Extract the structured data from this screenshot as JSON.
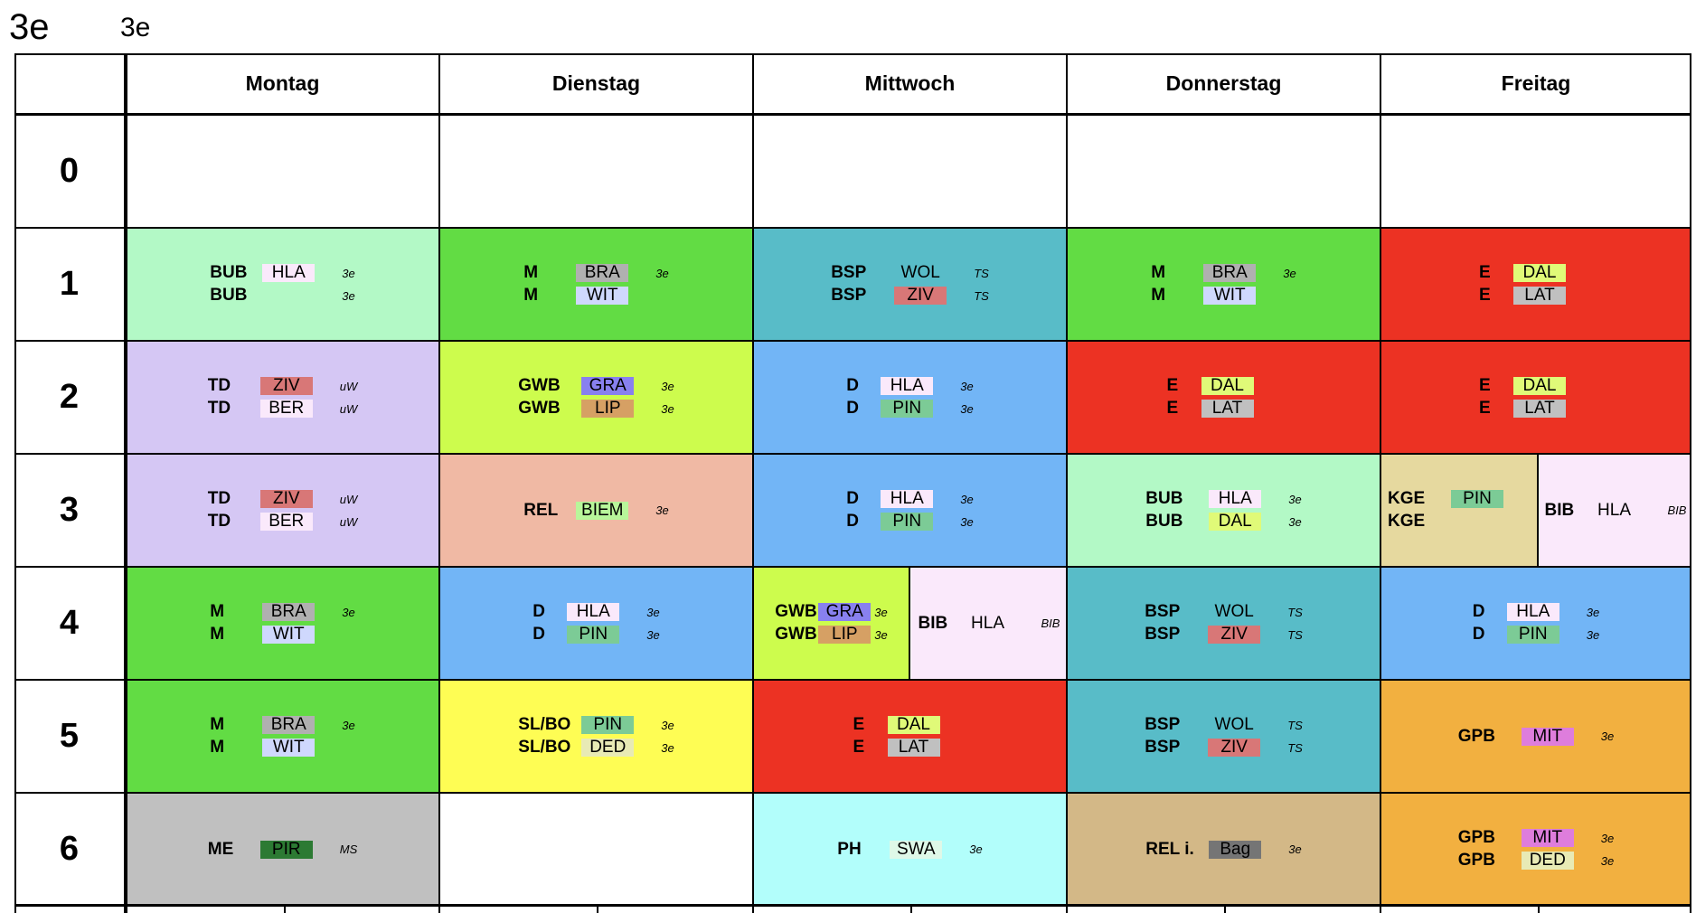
{
  "header": {
    "class_name": "3e",
    "class_label": "3e"
  },
  "days": [
    "Montag",
    "Dienstag",
    "Mittwoch",
    "Donnerstag",
    "Freitag"
  ],
  "periods": [
    "0",
    "1",
    "2",
    "3",
    "4",
    "5",
    "6"
  ],
  "colors": {
    "bub": "#b3f9c6",
    "math": "#62dc44",
    "bsp": "#58bcc8",
    "eng": "#ec3223",
    "td": "#d5c7f4",
    "gwb": "#cdfc4d",
    "deu": "#72b5f6",
    "rel": "#f0b9a4",
    "kge": "#e6d99f",
    "bib": "#fae9fb",
    "slbo": "#fefd54",
    "gpb": "#f2b040",
    "me": "#c0c0c0",
    "ph": "#b2fefb",
    "reli": "#d3b887",
    "t_hla": "#fae9fb",
    "t_bra": "#b0b0b0",
    "t_wit": "#cfd8fd",
    "t_ziv": "#d87777",
    "t_dal": "#e0fa78",
    "t_lat": "#c0c0c0",
    "t_ber": "#fae9fb",
    "t_gra": "#8880ef",
    "t_lip": "#d6a064",
    "t_pin": "#7ccb96",
    "t_biem": "#b8f69a",
    "t_ded": "#e8eab5",
    "t_mit": "#de7ddc",
    "t_pir": "#2c7a33",
    "t_swa": "#dff8e8",
    "t_bag": "#757575",
    "t_wol": "transparent"
  },
  "lessons": {
    "mo1": [
      {
        "subject": "BUB",
        "teacher": "HLA",
        "room": "3e"
      },
      {
        "subject": "BUB",
        "teacher": "",
        "room": "3e"
      }
    ],
    "di1": [
      {
        "subject": "M",
        "teacher": "BRA",
        "room": "3e"
      },
      {
        "subject": "M",
        "teacher": "WIT",
        "room": ""
      }
    ],
    "mi1": [
      {
        "subject": "BSP",
        "teacher": "WOL",
        "room": "TS"
      },
      {
        "subject": "BSP",
        "teacher": "ZIV",
        "room": "TS"
      }
    ],
    "do1": [
      {
        "subject": "M",
        "teacher": "BRA",
        "room": "3e"
      },
      {
        "subject": "M",
        "teacher": "WIT",
        "room": ""
      }
    ],
    "fr1": [
      {
        "subject": "E",
        "teacher": "DAL",
        "room": ""
      },
      {
        "subject": "E",
        "teacher": "LAT",
        "room": ""
      }
    ],
    "mo2": [
      {
        "subject": "TD",
        "teacher": "ZIV",
        "room": "uW"
      },
      {
        "subject": "TD",
        "teacher": "BER",
        "room": "uW"
      }
    ],
    "di2": [
      {
        "subject": "GWB",
        "teacher": "GRA",
        "room": "3e"
      },
      {
        "subject": "GWB",
        "teacher": "LIP",
        "room": "3e"
      }
    ],
    "mi2": [
      {
        "subject": "D",
        "teacher": "HLA",
        "room": "3e"
      },
      {
        "subject": "D",
        "teacher": "PIN",
        "room": "3e"
      }
    ],
    "do2": [
      {
        "subject": "E",
        "teacher": "DAL",
        "room": ""
      },
      {
        "subject": "E",
        "teacher": "LAT",
        "room": ""
      }
    ],
    "fr2": [
      {
        "subject": "E",
        "teacher": "DAL",
        "room": ""
      },
      {
        "subject": "E",
        "teacher": "LAT",
        "room": ""
      }
    ],
    "mo3": [
      {
        "subject": "TD",
        "teacher": "ZIV",
        "room": "uW"
      },
      {
        "subject": "TD",
        "teacher": "BER",
        "room": "uW"
      }
    ],
    "di3": [
      {
        "subject": "REL",
        "teacher": "BIEM",
        "room": "3e"
      }
    ],
    "mi3": [
      {
        "subject": "D",
        "teacher": "HLA",
        "room": "3e"
      },
      {
        "subject": "D",
        "teacher": "PIN",
        "room": "3e"
      }
    ],
    "do3": [
      {
        "subject": "BUB",
        "teacher": "HLA",
        "room": "3e"
      },
      {
        "subject": "BUB",
        "teacher": "DAL",
        "room": "3e"
      }
    ],
    "fr3a": [
      {
        "subject": "KGE",
        "teacher": "PIN",
        "room": ""
      },
      {
        "subject": "KGE",
        "teacher": "",
        "room": ""
      }
    ],
    "fr3b": [
      {
        "subject": "BIB",
        "teacher": "HLA",
        "room": "BIB"
      }
    ],
    "mo4": [
      {
        "subject": "M",
        "teacher": "BRA",
        "room": "3e"
      },
      {
        "subject": "M",
        "teacher": "WIT",
        "room": ""
      }
    ],
    "di4": [
      {
        "subject": "D",
        "teacher": "HLA",
        "room": "3e"
      },
      {
        "subject": "D",
        "teacher": "PIN",
        "room": "3e"
      }
    ],
    "mi4a": [
      {
        "subject": "GWB",
        "teacher": "GRA",
        "room": "3e"
      },
      {
        "subject": "GWB",
        "teacher": "LIP",
        "room": "3e"
      }
    ],
    "mi4b": [
      {
        "subject": "BIB",
        "teacher": "HLA",
        "room": "BIB"
      }
    ],
    "do4": [
      {
        "subject": "BSP",
        "teacher": "WOL",
        "room": "TS"
      },
      {
        "subject": "BSP",
        "teacher": "ZIV",
        "room": "TS"
      }
    ],
    "fr4": [
      {
        "subject": "D",
        "teacher": "HLA",
        "room": "3e"
      },
      {
        "subject": "D",
        "teacher": "PIN",
        "room": "3e"
      }
    ],
    "mo5": [
      {
        "subject": "M",
        "teacher": "BRA",
        "room": "3e"
      },
      {
        "subject": "M",
        "teacher": "WIT",
        "room": ""
      }
    ],
    "di5": [
      {
        "subject": "SL/BO",
        "teacher": "PIN",
        "room": "3e"
      },
      {
        "subject": "SL/BO",
        "teacher": "DED",
        "room": "3e"
      }
    ],
    "mi5": [
      {
        "subject": "E",
        "teacher": "DAL",
        "room": ""
      },
      {
        "subject": "E",
        "teacher": "LAT",
        "room": ""
      }
    ],
    "do5": [
      {
        "subject": "BSP",
        "teacher": "WOL",
        "room": "TS"
      },
      {
        "subject": "BSP",
        "teacher": "ZIV",
        "room": "TS"
      }
    ],
    "fr5": [
      {
        "subject": "GPB",
        "teacher": "MIT",
        "room": "3e"
      }
    ],
    "mo6": [
      {
        "subject": "ME",
        "teacher": "PIR",
        "room": "MS"
      }
    ],
    "mi6": [
      {
        "subject": "PH",
        "teacher": "SWA",
        "room": "3e"
      }
    ],
    "do6": [
      {
        "subject": "REL i.",
        "teacher": "Bag",
        "room": "3e"
      }
    ],
    "fr6": [
      {
        "subject": "GPB",
        "teacher": "MIT",
        "room": "3e"
      },
      {
        "subject": "GPB",
        "teacher": "DED",
        "room": "3e"
      }
    ]
  }
}
